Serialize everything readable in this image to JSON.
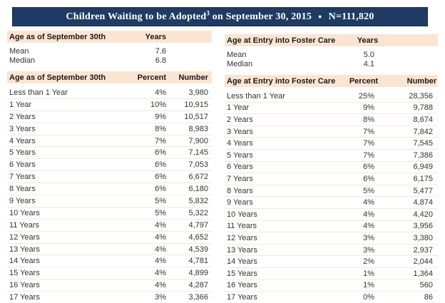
{
  "title": {
    "main": "Children Waiting to be Adopted",
    "footnote_sup": "3",
    "suffix": " on September 30, 2015",
    "bullet": "●",
    "n_value": "N=111,820"
  },
  "colors": {
    "title_bg": "#1F3B63",
    "title_border": "#14294A",
    "band_bg": "#FBE5D2"
  },
  "left_table": {
    "stats_header": {
      "label": "Age as of September 30th",
      "unit_col": "Years"
    },
    "stats": [
      {
        "label": "Mean",
        "value": "7.6"
      },
      {
        "label": "Median",
        "value": "6.8"
      }
    ],
    "dist_header": {
      "label": "Age as of September 30th",
      "percent_col": "Percent",
      "number_col": "Number"
    },
    "rows": [
      {
        "age": "Less than 1 Year",
        "percent": "4%",
        "number": "3,980"
      },
      {
        "age": "1 Year",
        "percent": "10%",
        "number": "10,915"
      },
      {
        "age": "2 Years",
        "percent": "9%",
        "number": "10,517"
      },
      {
        "age": "3 Years",
        "percent": "8%",
        "number": "8,983"
      },
      {
        "age": "4 Years",
        "percent": "7%",
        "number": "7,900"
      },
      {
        "age": "5 Years",
        "percent": "6%",
        "number": "7,145"
      },
      {
        "age": "6 Years",
        "percent": "6%",
        "number": "7,053"
      },
      {
        "age": "7 Years",
        "percent": "6%",
        "number": "6,672"
      },
      {
        "age": "8 Years",
        "percent": "6%",
        "number": "6,180"
      },
      {
        "age": "9 Years",
        "percent": "5%",
        "number": "5,832"
      },
      {
        "age": "10 Years",
        "percent": "5%",
        "number": "5,322"
      },
      {
        "age": "11 Years",
        "percent": "4%",
        "number": "4,797"
      },
      {
        "age": "12 Years",
        "percent": "4%",
        "number": "4,652"
      },
      {
        "age": "13 Years",
        "percent": "4%",
        "number": "4,539"
      },
      {
        "age": "14 Years",
        "percent": "4%",
        "number": "4,781"
      },
      {
        "age": "15 Years",
        "percent": "4%",
        "number": "4,899"
      },
      {
        "age": "16 Years",
        "percent": "4%",
        "number": "4,287"
      },
      {
        "age": "17 Years",
        "percent": "3%",
        "number": "3,366"
      }
    ]
  },
  "right_table": {
    "stats_header": {
      "label": "Age at Entry into Foster Care",
      "unit_col": "Years"
    },
    "stats": [
      {
        "label": "Mean",
        "value": "5.0"
      },
      {
        "label": "Median",
        "value": "4.1"
      }
    ],
    "dist_header": {
      "label": "Age at Entry into Foster Care",
      "percent_col": "Percent",
      "number_col": "Number"
    },
    "rows": [
      {
        "age": "Less than 1 Year",
        "percent": "25%",
        "number": "28,356"
      },
      {
        "age": "1 Year",
        "percent": "9%",
        "number": "9,788"
      },
      {
        "age": "2 Years",
        "percent": "8%",
        "number": "8,674"
      },
      {
        "age": "3 Years",
        "percent": "7%",
        "number": "7,842"
      },
      {
        "age": "4 Years",
        "percent": "7%",
        "number": "7,545"
      },
      {
        "age": "5 Years",
        "percent": "7%",
        "number": "7,386"
      },
      {
        "age": "6 Years",
        "percent": "6%",
        "number": "6,949"
      },
      {
        "age": "7 Years",
        "percent": "6%",
        "number": "6,175"
      },
      {
        "age": "8 Years",
        "percent": "5%",
        "number": "5,477"
      },
      {
        "age": "9 Years",
        "percent": "4%",
        "number": "4,874"
      },
      {
        "age": "10 Years",
        "percent": "4%",
        "number": "4,420"
      },
      {
        "age": "11 Years",
        "percent": "4%",
        "number": "3,956"
      },
      {
        "age": "12 Years",
        "percent": "3%",
        "number": "3,380"
      },
      {
        "age": "13 Years",
        "percent": "3%",
        "number": "2,937"
      },
      {
        "age": "14 Years",
        "percent": "2%",
        "number": "2,044"
      },
      {
        "age": "15 Years",
        "percent": "1%",
        "number": "1,364"
      },
      {
        "age": "16 Years",
        "percent": "1%",
        "number": "560"
      },
      {
        "age": "17 Years",
        "percent": "0%",
        "number": "86"
      }
    ]
  }
}
